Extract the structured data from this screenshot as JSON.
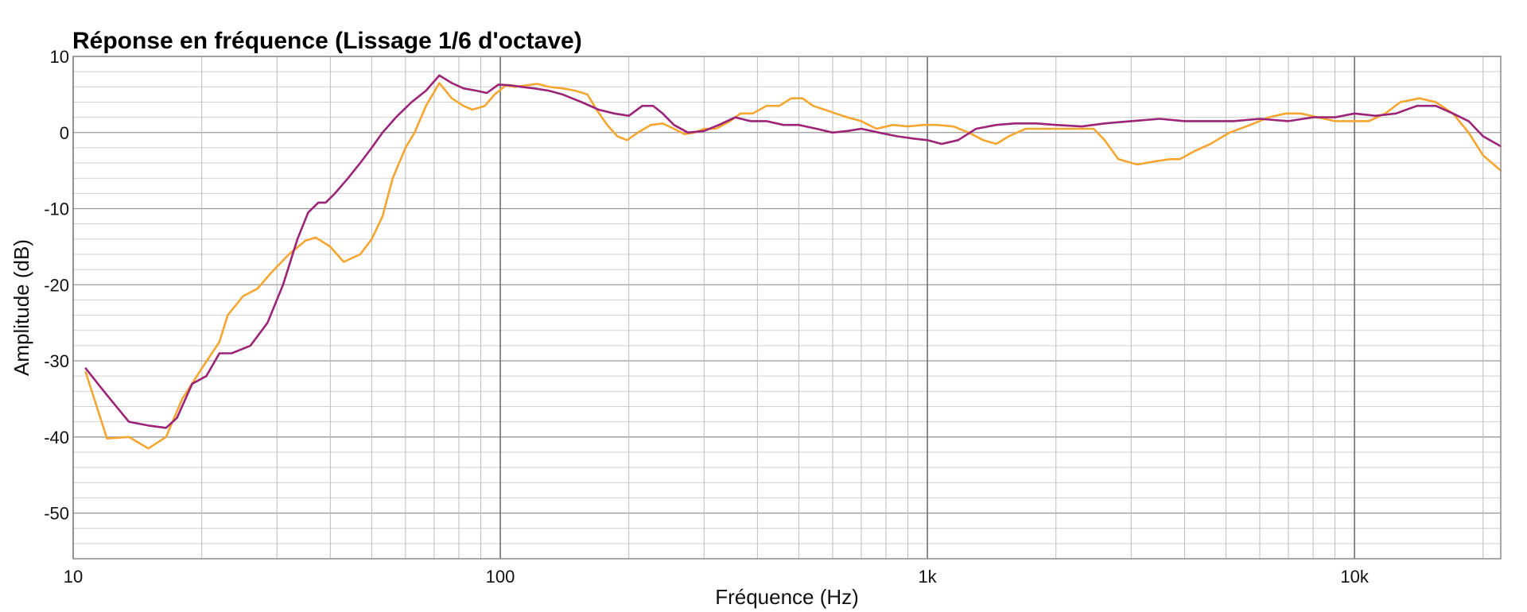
{
  "chart_data": {
    "type": "line",
    "title": "Réponse en fréquence (Lissage 1/6 d'octave)",
    "xlabel": "Fréquence (Hz)",
    "ylabel": "Amplitude (dB)",
    "x_scale": "log",
    "xlim": [
      10,
      22000
    ],
    "ylim": [
      -56,
      10
    ],
    "x_ticks": [
      {
        "value": 10,
        "label": "10"
      },
      {
        "value": 100,
        "label": "100"
      },
      {
        "value": 1000,
        "label": "1k"
      },
      {
        "value": 10000,
        "label": "10k"
      }
    ],
    "y_ticks": [
      {
        "value": 10,
        "label": "10"
      },
      {
        "value": 0,
        "label": "0"
      },
      {
        "value": -10,
        "label": "-10"
      },
      {
        "value": -20,
        "label": "-20"
      },
      {
        "value": -30,
        "label": "-30"
      },
      {
        "value": -40,
        "label": "-40"
      },
      {
        "value": -50,
        "label": "-50"
      }
    ],
    "grid": true,
    "legend": "none",
    "series": [
      {
        "color": "#f5a631",
        "points": [
          [
            10.7,
            -31.5
          ],
          [
            12,
            -40.2
          ],
          [
            13.5,
            -40
          ],
          [
            15,
            -41.5
          ],
          [
            16.5,
            -40
          ],
          [
            18,
            -35
          ],
          [
            20,
            -31
          ],
          [
            22,
            -27.5
          ],
          [
            23,
            -24
          ],
          [
            25,
            -21.5
          ],
          [
            27,
            -20.5
          ],
          [
            29,
            -18.5
          ],
          [
            32,
            -16
          ],
          [
            35,
            -14.2
          ],
          [
            37,
            -13.8
          ],
          [
            40,
            -15
          ],
          [
            43,
            -17
          ],
          [
            47,
            -16
          ],
          [
            50,
            -14
          ],
          [
            53,
            -11
          ],
          [
            56,
            -6
          ],
          [
            60,
            -2
          ],
          [
            63,
            0
          ],
          [
            67,
            3.5
          ],
          [
            72,
            6.5
          ],
          [
            77,
            4.5
          ],
          [
            82,
            3.5
          ],
          [
            86,
            3
          ],
          [
            92,
            3.5
          ],
          [
            97,
            5
          ],
          [
            103,
            6.2
          ],
          [
            108,
            6
          ],
          [
            115,
            6.2
          ],
          [
            122,
            6.4
          ],
          [
            130,
            6
          ],
          [
            140,
            5.8
          ],
          [
            150,
            5.5
          ],
          [
            160,
            5
          ],
          [
            168,
            3
          ],
          [
            178,
            1
          ],
          [
            188,
            -0.5
          ],
          [
            198,
            -1
          ],
          [
            210,
            0
          ],
          [
            225,
            1
          ],
          [
            240,
            1.2
          ],
          [
            255,
            0.5
          ],
          [
            270,
            -0.2
          ],
          [
            285,
            0
          ],
          [
            300,
            0.5
          ],
          [
            320,
            0.5
          ],
          [
            345,
            1.5
          ],
          [
            365,
            2.5
          ],
          [
            390,
            2.5
          ],
          [
            420,
            3.5
          ],
          [
            450,
            3.5
          ],
          [
            480,
            4.5
          ],
          [
            510,
            4.5
          ],
          [
            540,
            3.5
          ],
          [
            575,
            3
          ],
          [
            610,
            2.5
          ],
          [
            650,
            2
          ],
          [
            700,
            1.5
          ],
          [
            760,
            0.5
          ],
          [
            830,
            1
          ],
          [
            900,
            0.8
          ],
          [
            980,
            1
          ],
          [
            1050,
            1
          ],
          [
            1150,
            0.8
          ],
          [
            1250,
            0
          ],
          [
            1350,
            -1
          ],
          [
            1450,
            -1.5
          ],
          [
            1550,
            -0.5
          ],
          [
            1700,
            0.5
          ],
          [
            1900,
            0.5
          ],
          [
            2100,
            0.5
          ],
          [
            2300,
            0.5
          ],
          [
            2450,
            0.5
          ],
          [
            2600,
            -1
          ],
          [
            2800,
            -3.5
          ],
          [
            3100,
            -4.2
          ],
          [
            3400,
            -3.8
          ],
          [
            3700,
            -3.5
          ],
          [
            3900,
            -3.5
          ],
          [
            4200,
            -2.5
          ],
          [
            4600,
            -1.5
          ],
          [
            5100,
            0
          ],
          [
            5700,
            1
          ],
          [
            6300,
            2
          ],
          [
            6900,
            2.5
          ],
          [
            7500,
            2.5
          ],
          [
            8200,
            2
          ],
          [
            9000,
            1.5
          ],
          [
            9800,
            1.5
          ],
          [
            10800,
            1.5
          ],
          [
            11800,
            2.5
          ],
          [
            12800,
            4
          ],
          [
            14200,
            4.5
          ],
          [
            15500,
            4
          ],
          [
            17000,
            2.5
          ],
          [
            18500,
            0
          ],
          [
            20000,
            -3
          ],
          [
            22000,
            -5
          ]
        ]
      },
      {
        "color": "#9b2477",
        "points": [
          [
            10.7,
            -31
          ],
          [
            12,
            -34.5
          ],
          [
            13.5,
            -38
          ],
          [
            15,
            -38.5
          ],
          [
            16.5,
            -38.8
          ],
          [
            17.5,
            -37.5
          ],
          [
            19,
            -33
          ],
          [
            20.5,
            -32
          ],
          [
            22,
            -29
          ],
          [
            23.5,
            -29
          ],
          [
            26,
            -28
          ],
          [
            28.5,
            -25
          ],
          [
            31,
            -20
          ],
          [
            33.5,
            -14
          ],
          [
            35.5,
            -10.5
          ],
          [
            37.5,
            -9.2
          ],
          [
            39,
            -9.2
          ],
          [
            41,
            -8
          ],
          [
            44,
            -6
          ],
          [
            47,
            -4
          ],
          [
            50,
            -2
          ],
          [
            53,
            0
          ],
          [
            57,
            2
          ],
          [
            62,
            4
          ],
          [
            67,
            5.5
          ],
          [
            72,
            7.5
          ],
          [
            77,
            6.5
          ],
          [
            82,
            5.8
          ],
          [
            88,
            5.5
          ],
          [
            93,
            5.2
          ],
          [
            99,
            6.3
          ],
          [
            106,
            6.2
          ],
          [
            112,
            6
          ],
          [
            120,
            5.8
          ],
          [
            130,
            5.5
          ],
          [
            140,
            5
          ],
          [
            155,
            4
          ],
          [
            170,
            3
          ],
          [
            185,
            2.5
          ],
          [
            200,
            2.2
          ],
          [
            215,
            3.5
          ],
          [
            228,
            3.5
          ],
          [
            240,
            2.5
          ],
          [
            255,
            1
          ],
          [
            275,
            0
          ],
          [
            300,
            0.2
          ],
          [
            325,
            1
          ],
          [
            355,
            2
          ],
          [
            385,
            1.5
          ],
          [
            420,
            1.5
          ],
          [
            460,
            1
          ],
          [
            500,
            1
          ],
          [
            550,
            0.5
          ],
          [
            600,
            0
          ],
          [
            650,
            0.2
          ],
          [
            700,
            0.5
          ],
          [
            770,
            0
          ],
          [
            850,
            -0.5
          ],
          [
            930,
            -0.8
          ],
          [
            1000,
            -1
          ],
          [
            1080,
            -1.5
          ],
          [
            1180,
            -1
          ],
          [
            1300,
            0.5
          ],
          [
            1450,
            1
          ],
          [
            1600,
            1.2
          ],
          [
            1800,
            1.2
          ],
          [
            2000,
            1
          ],
          [
            2300,
            0.8
          ],
          [
            2600,
            1.2
          ],
          [
            3000,
            1.5
          ],
          [
            3500,
            1.8
          ],
          [
            4000,
            1.5
          ],
          [
            4500,
            1.5
          ],
          [
            5200,
            1.5
          ],
          [
            6000,
            1.8
          ],
          [
            7000,
            1.5
          ],
          [
            8000,
            2
          ],
          [
            9000,
            2
          ],
          [
            10000,
            2.5
          ],
          [
            11200,
            2.2
          ],
          [
            12500,
            2.5
          ],
          [
            14000,
            3.5
          ],
          [
            15500,
            3.5
          ],
          [
            17000,
            2.5
          ],
          [
            18500,
            1.5
          ],
          [
            20000,
            -0.5
          ],
          [
            22000,
            -1.8
          ]
        ]
      }
    ]
  }
}
